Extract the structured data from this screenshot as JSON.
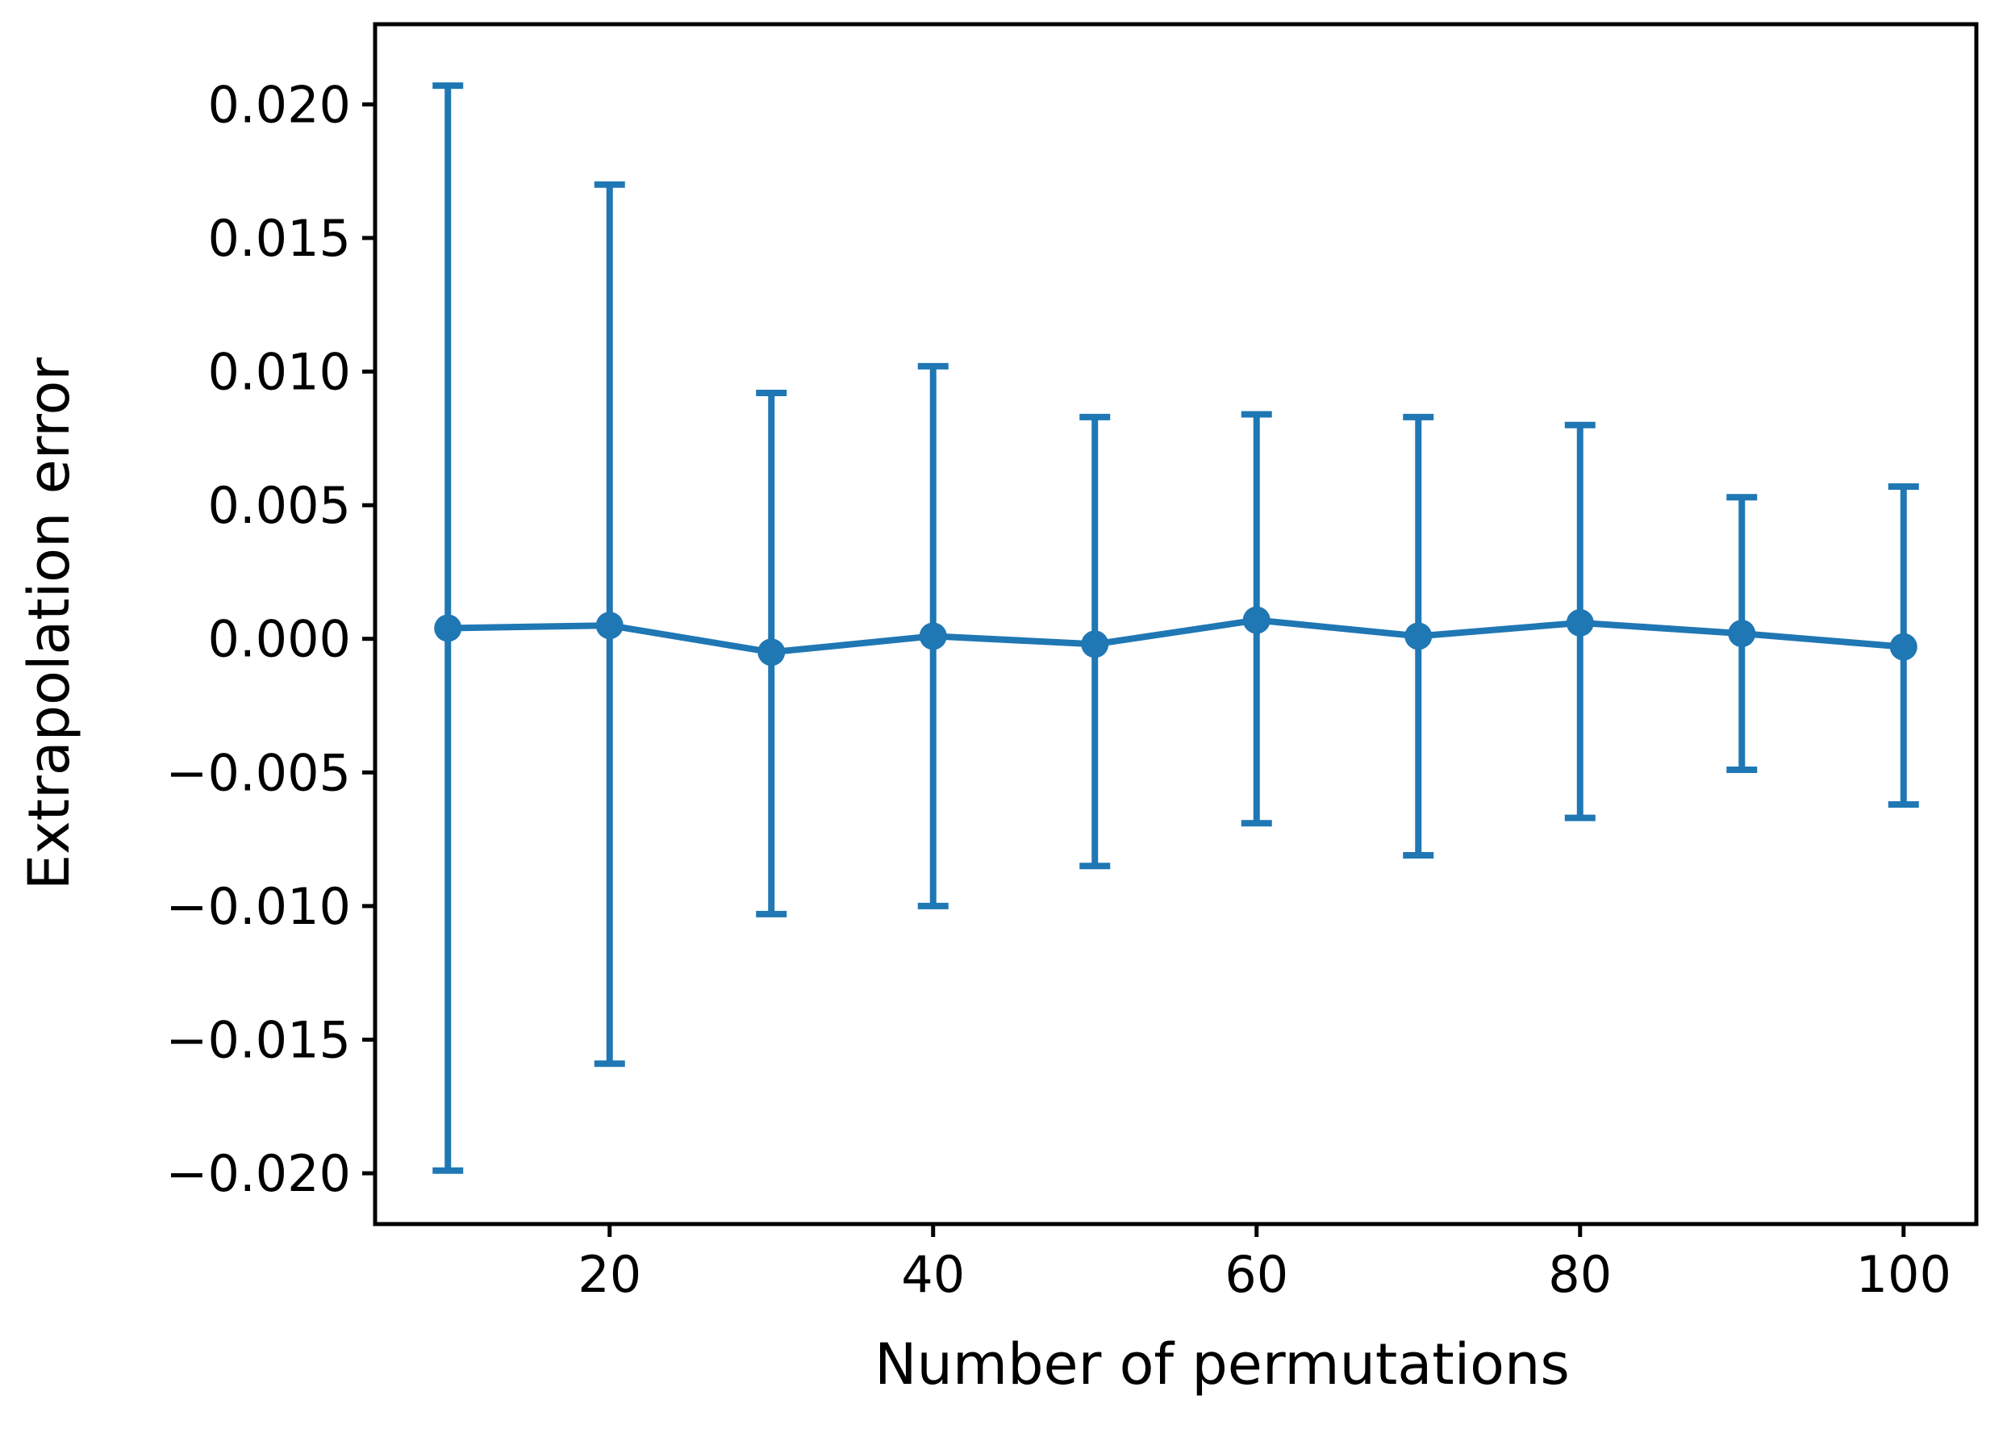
{
  "figure": {
    "background": "#ffffff"
  },
  "chart_data": {
    "type": "line",
    "subtype": "errorbar",
    "title": "",
    "xlabel": "Number of permutations",
    "ylabel": "Extrapolation error",
    "x": [
      10,
      20,
      30,
      40,
      50,
      60,
      70,
      80,
      90,
      100
    ],
    "y": [
      0.0004,
      0.0005,
      -0.0005,
      0.0001,
      -0.0002,
      0.0007,
      0.0001,
      0.0006,
      0.0002,
      -0.0003
    ],
    "err_upper": [
      0.0207,
      0.017,
      0.0092,
      0.0102,
      0.0083,
      0.0084,
      0.0083,
      0.008,
      0.0053,
      0.0057
    ],
    "err_lower": [
      -0.0199,
      -0.0159,
      -0.0103,
      -0.01,
      -0.0085,
      -0.0069,
      -0.0081,
      -0.0067,
      -0.0049,
      -0.0062
    ],
    "xlim": [
      5.5,
      104.5
    ],
    "ylim": [
      -0.0219,
      0.023
    ],
    "xticks": {
      "values": [
        20,
        40,
        60,
        80,
        100
      ],
      "labels": [
        "20",
        "40",
        "60",
        "80",
        "100"
      ]
    },
    "yticks": {
      "values": [
        0.02,
        0.015,
        0.01,
        0.005,
        0.0,
        -0.005,
        -0.01,
        -0.015,
        -0.02
      ],
      "labels": [
        "0.020",
        "0.015",
        "0.010",
        "0.005",
        "0.000",
        "−0.005",
        "−0.010",
        "−0.015",
        "−0.020"
      ]
    },
    "grid": false,
    "legend": null,
    "line_color": "#1f77b4",
    "spine_color": "#000000",
    "text_color": "#000000"
  }
}
